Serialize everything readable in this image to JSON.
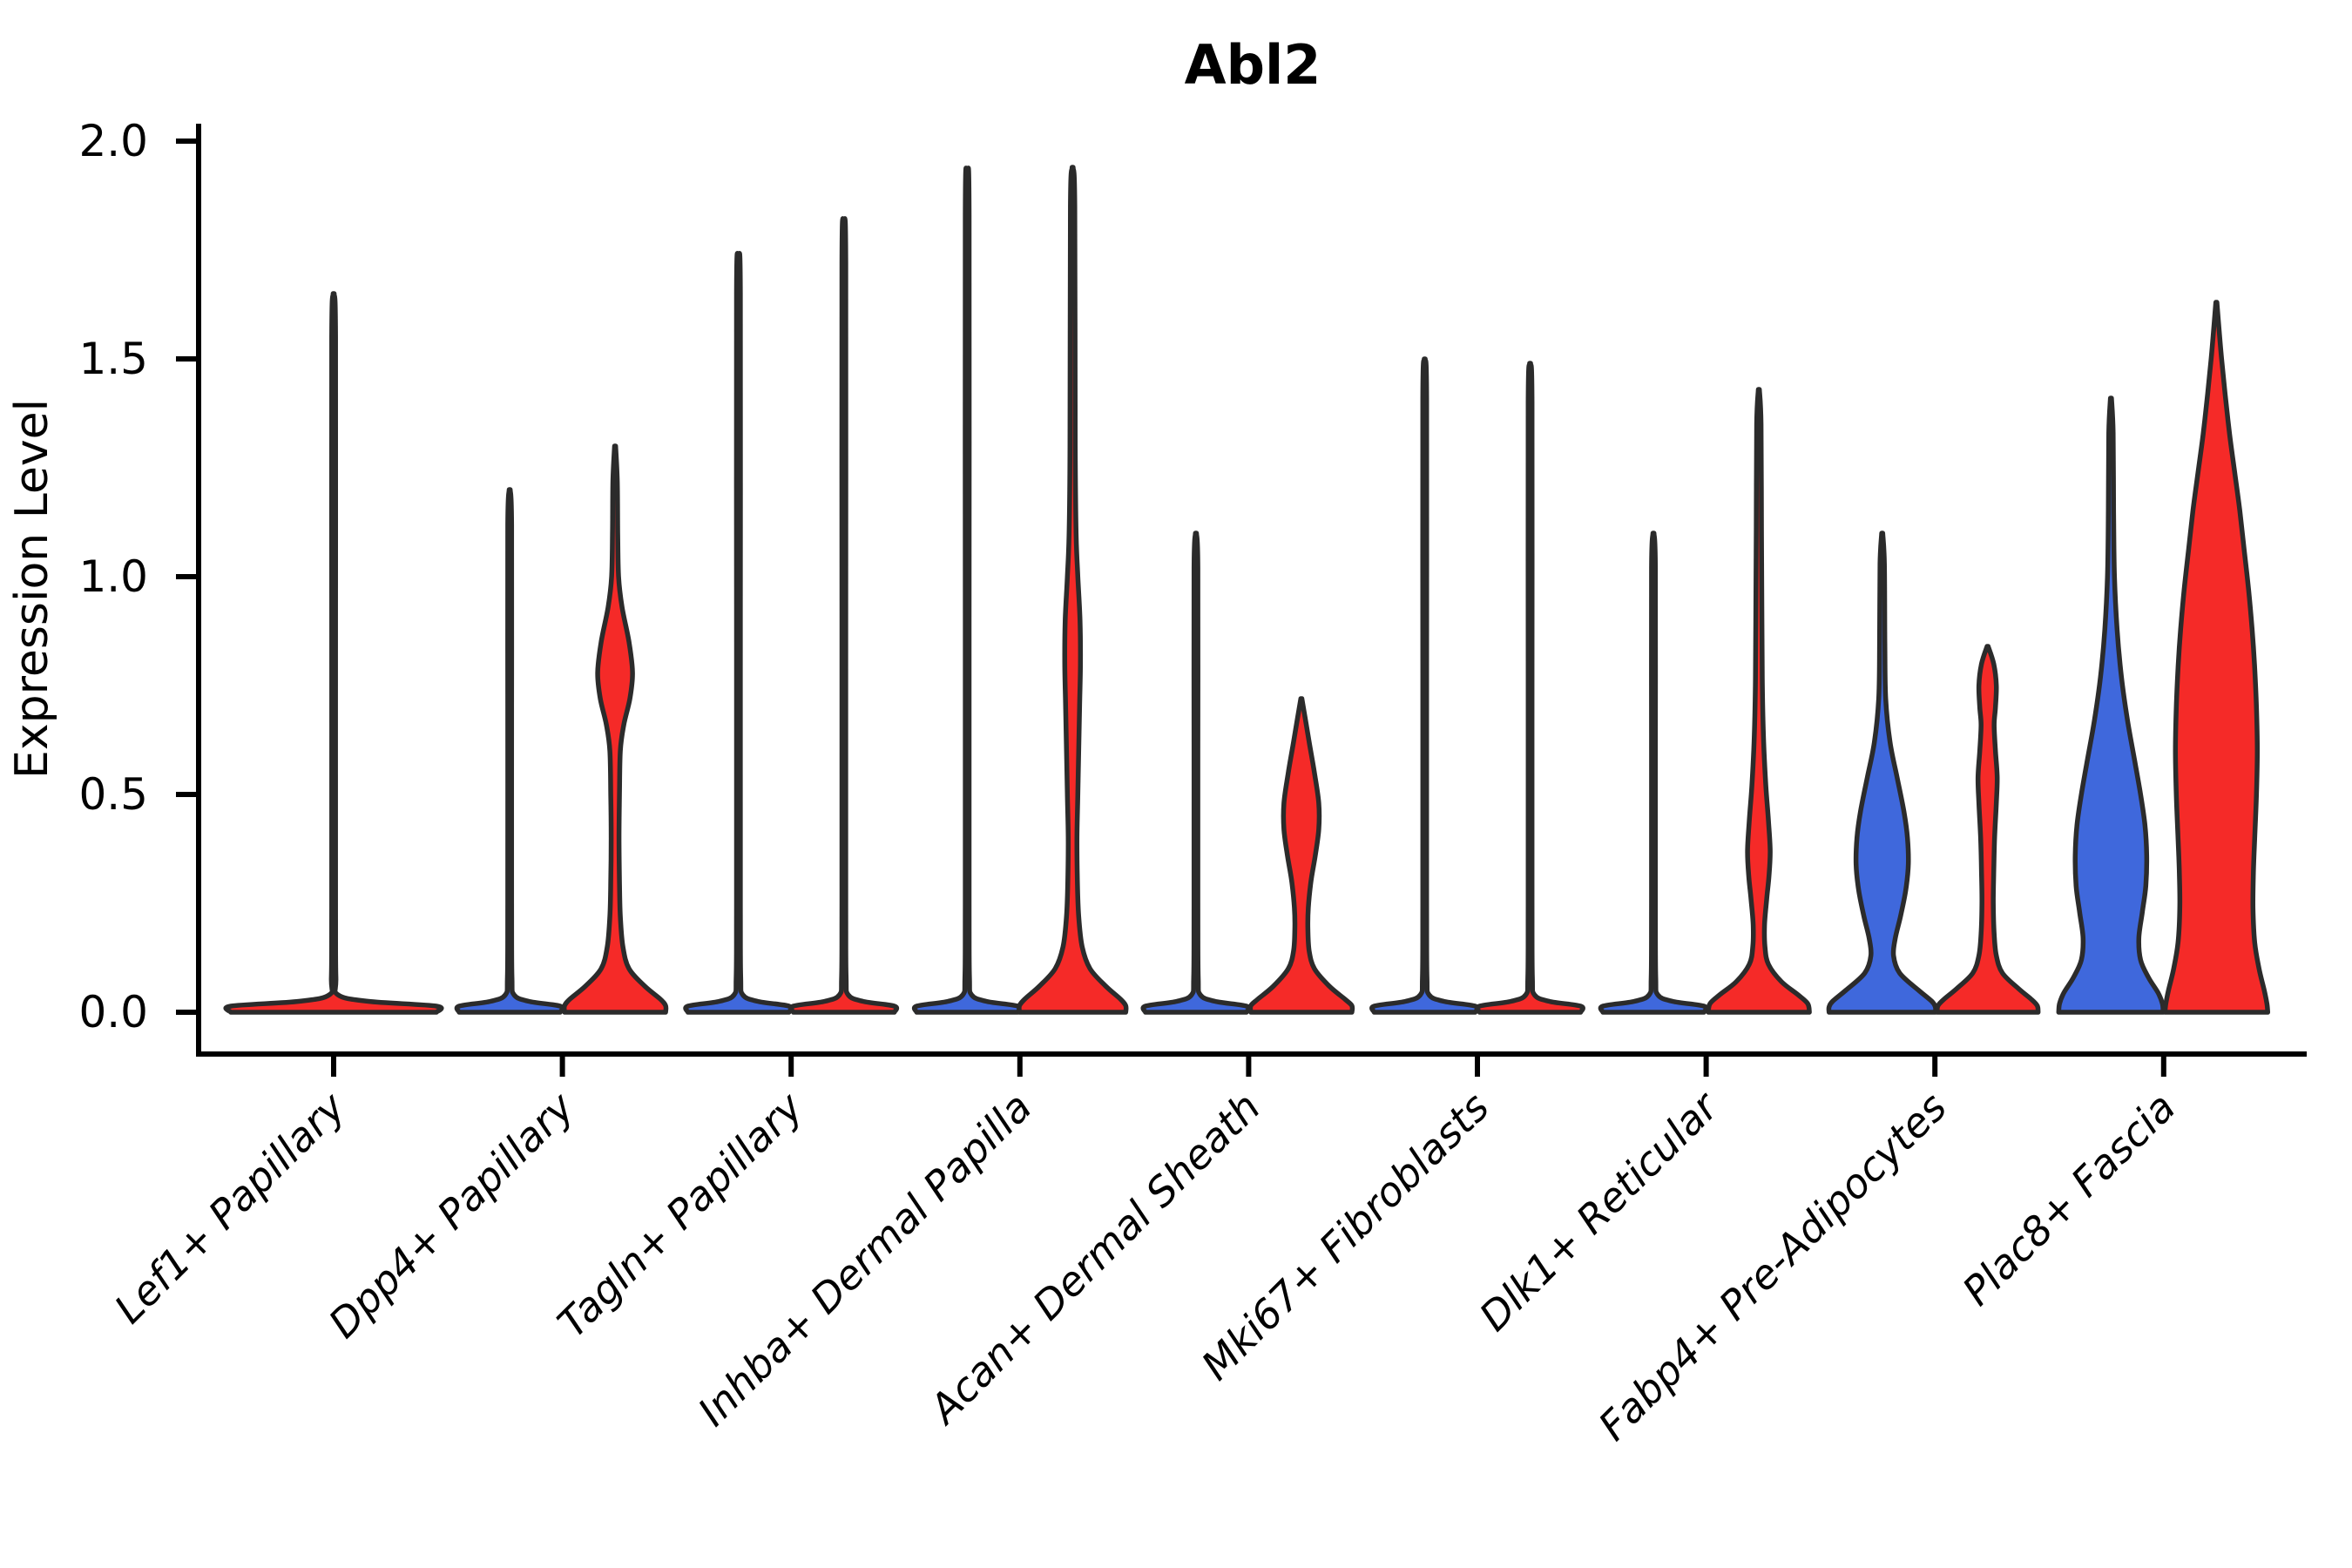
{
  "title": "Abl2",
  "y_axis": {
    "label": "Expression Level",
    "tick_labels": [
      "0.0",
      "0.5",
      "1.0",
      "1.5",
      "2.0"
    ],
    "tick_values": [
      0.0,
      0.5,
      1.0,
      1.5,
      2.0
    ]
  },
  "colors": {
    "red": "#F52A28",
    "blue": "#3F68DC",
    "outline": "#2B2B2B",
    "axis": "#000000",
    "background": "#ffffff"
  },
  "chart_data": {
    "type": "violin",
    "title": "Abl2",
    "ylabel": "Expression Level",
    "ylim": [
      0,
      2.05
    ],
    "grid": false,
    "legend": "none",
    "categories": [
      "Lef1+ Papillary",
      "Dpp4+ Papillary",
      "Tagln+ Papillary",
      "Inhba+ Dermal Papilla",
      "Acan+ Dermal Sheath",
      "Mki67+ Fibroblasts",
      "Dlk1+ Reticular",
      "Fabp4+ Pre-Adipocytes",
      "Plac8+ Fascia"
    ],
    "violins": [
      {
        "category_index": 0,
        "category": "Lef1+ Papillary",
        "position": "center",
        "color_key": "red",
        "max_expression": 1.65,
        "bulk_at_zero": true,
        "width_profile": [
          [
            1.65,
            0.6
          ],
          [
            1.55,
            2.2
          ],
          [
            0.9,
            2.2
          ],
          [
            0.25,
            2.2
          ],
          [
            0.08,
            2.6
          ],
          [
            0.04,
            5
          ],
          [
            0.025,
            40
          ],
          [
            0.014,
            118
          ],
          [
            0,
            118
          ]
        ]
      },
      {
        "category_index": 1,
        "category": "Dpp4+ Papillary",
        "position": "left",
        "color_key": "blue",
        "max_expression": 1.2,
        "bulk_at_zero": true,
        "width_profile": [
          [
            1.2,
            0.6
          ],
          [
            1.12,
            2.2
          ],
          [
            0.7,
            2.2
          ],
          [
            0.25,
            2.2
          ],
          [
            0.08,
            2.6
          ],
          [
            0.04,
            5
          ],
          [
            0.025,
            22
          ],
          [
            0.014,
            58
          ],
          [
            0,
            58
          ]
        ]
      },
      {
        "category_index": 1,
        "category": "Dpp4+ Papillary",
        "position": "right",
        "color_key": "red",
        "max_expression": 1.3,
        "width_profile": [
          [
            1.3,
            0.6
          ],
          [
            1.22,
            2.5
          ],
          [
            1.1,
            3
          ],
          [
            1.0,
            4
          ],
          [
            0.93,
            8
          ],
          [
            0.85,
            16
          ],
          [
            0.78,
            20
          ],
          [
            0.72,
            17
          ],
          [
            0.66,
            10
          ],
          [
            0.6,
            6
          ],
          [
            0.5,
            5
          ],
          [
            0.4,
            4.5
          ],
          [
            0.3,
            5
          ],
          [
            0.22,
            6
          ],
          [
            0.15,
            9
          ],
          [
            0.1,
            16
          ],
          [
            0.06,
            34
          ],
          [
            0.03,
            52
          ],
          [
            0.015,
            58
          ],
          [
            0,
            58
          ]
        ]
      },
      {
        "category_index": 2,
        "category": "Tagln+ Papillary",
        "position": "left",
        "color_key": "blue",
        "max_expression": 1.74,
        "bulk_at_zero": true,
        "width_profile": [
          [
            1.74,
            0.6
          ],
          [
            1.65,
            2.2
          ],
          [
            0.9,
            2.2
          ],
          [
            0.25,
            2.2
          ],
          [
            0.08,
            2.6
          ],
          [
            0.04,
            5
          ],
          [
            0.025,
            22
          ],
          [
            0.014,
            58
          ],
          [
            0,
            58
          ]
        ]
      },
      {
        "category_index": 2,
        "category": "Tagln+ Papillary",
        "position": "right",
        "color_key": "red",
        "max_expression": 1.82,
        "bulk_at_zero": true,
        "width_profile": [
          [
            1.82,
            0.6
          ],
          [
            1.72,
            2.2
          ],
          [
            0.9,
            2.2
          ],
          [
            0.25,
            2.2
          ],
          [
            0.08,
            2.6
          ],
          [
            0.04,
            5
          ],
          [
            0.025,
            22
          ],
          [
            0.014,
            58
          ],
          [
            0,
            58
          ]
        ]
      },
      {
        "category_index": 3,
        "category": "Inhba+ Dermal Papilla",
        "position": "left",
        "color_key": "blue",
        "max_expression": 1.93,
        "bulk_at_zero": true,
        "width_profile": [
          [
            1.93,
            0.6
          ],
          [
            1.83,
            2.2
          ],
          [
            0.9,
            2.2
          ],
          [
            0.25,
            2.2
          ],
          [
            0.08,
            2.6
          ],
          [
            0.04,
            5
          ],
          [
            0.025,
            22
          ],
          [
            0.014,
            58
          ],
          [
            0,
            58
          ]
        ]
      },
      {
        "category_index": 3,
        "category": "Inhba+ Dermal Papilla",
        "position": "right",
        "color_key": "red",
        "max_expression": 1.94,
        "width_profile": [
          [
            1.94,
            0.6
          ],
          [
            1.85,
            2.5
          ],
          [
            1.3,
            3
          ],
          [
            1.1,
            4
          ],
          [
            1.0,
            6
          ],
          [
            0.9,
            8.5
          ],
          [
            0.8,
            9
          ],
          [
            0.7,
            8
          ],
          [
            0.6,
            7
          ],
          [
            0.5,
            6
          ],
          [
            0.4,
            5
          ],
          [
            0.3,
            5.5
          ],
          [
            0.22,
            7
          ],
          [
            0.15,
            11
          ],
          [
            0.1,
            20
          ],
          [
            0.06,
            38
          ],
          [
            0.03,
            55
          ],
          [
            0.015,
            61
          ],
          [
            0,
            61
          ]
        ]
      },
      {
        "category_index": 4,
        "category": "Acan+ Dermal Sheath",
        "position": "left",
        "color_key": "blue",
        "max_expression": 1.1,
        "bulk_at_zero": true,
        "width_profile": [
          [
            1.1,
            0.6
          ],
          [
            1.02,
            2.2
          ],
          [
            0.6,
            2.2
          ],
          [
            0.25,
            2.2
          ],
          [
            0.08,
            2.6
          ],
          [
            0.04,
            5
          ],
          [
            0.025,
            22
          ],
          [
            0.014,
            58
          ],
          [
            0,
            58
          ]
        ]
      },
      {
        "category_index": 4,
        "category": "Acan+ Dermal Sheath",
        "position": "right",
        "color_key": "red",
        "max_expression": 0.72,
        "width_profile": [
          [
            0.72,
            0.6
          ],
          [
            0.68,
            4
          ],
          [
            0.62,
            9
          ],
          [
            0.55,
            15
          ],
          [
            0.48,
            20
          ],
          [
            0.42,
            20
          ],
          [
            0.36,
            16
          ],
          [
            0.3,
            11
          ],
          [
            0.24,
            8
          ],
          [
            0.19,
            7.5
          ],
          [
            0.14,
            9
          ],
          [
            0.1,
            15
          ],
          [
            0.06,
            32
          ],
          [
            0.03,
            50
          ],
          [
            0.015,
            58
          ],
          [
            0,
            58
          ]
        ]
      },
      {
        "category_index": 5,
        "category": "Mki67+ Fibroblasts",
        "position": "left",
        "color_key": "blue",
        "max_expression": 1.5,
        "bulk_at_zero": true,
        "width_profile": [
          [
            1.5,
            0.6
          ],
          [
            1.41,
            2.2
          ],
          [
            0.8,
            2.2
          ],
          [
            0.25,
            2.2
          ],
          [
            0.08,
            2.6
          ],
          [
            0.04,
            5
          ],
          [
            0.025,
            22
          ],
          [
            0.014,
            58
          ],
          [
            0,
            58
          ]
        ]
      },
      {
        "category_index": 5,
        "category": "Mki67+ Fibroblasts",
        "position": "right",
        "color_key": "red",
        "max_expression": 1.49,
        "bulk_at_zero": true,
        "width_profile": [
          [
            1.49,
            0.6
          ],
          [
            1.4,
            2.2
          ],
          [
            0.8,
            2.2
          ],
          [
            0.25,
            2.2
          ],
          [
            0.08,
            2.6
          ],
          [
            0.04,
            5
          ],
          [
            0.025,
            22
          ],
          [
            0.014,
            58
          ],
          [
            0,
            58
          ]
        ]
      },
      {
        "category_index": 6,
        "category": "Dlk1+ Reticular",
        "position": "left",
        "color_key": "blue",
        "max_expression": 1.1,
        "bulk_at_zero": true,
        "width_profile": [
          [
            1.1,
            0.6
          ],
          [
            1.02,
            2.2
          ],
          [
            0.6,
            2.2
          ],
          [
            0.25,
            2.2
          ],
          [
            0.08,
            2.6
          ],
          [
            0.04,
            5
          ],
          [
            0.025,
            22
          ],
          [
            0.014,
            58
          ],
          [
            0,
            58
          ]
        ]
      },
      {
        "category_index": 6,
        "category": "Dlk1+ Reticular",
        "position": "right",
        "color_key": "red",
        "max_expression": 1.43,
        "width_profile": [
          [
            1.43,
            0.6
          ],
          [
            1.35,
            2.5
          ],
          [
            1.1,
            3
          ],
          [
            0.9,
            3.5
          ],
          [
            0.75,
            4
          ],
          [
            0.62,
            5.5
          ],
          [
            0.52,
            8
          ],
          [
            0.44,
            11
          ],
          [
            0.37,
            13
          ],
          [
            0.31,
            11.5
          ],
          [
            0.26,
            9
          ],
          [
            0.2,
            6.5
          ],
          [
            0.15,
            7
          ],
          [
            0.11,
            11
          ],
          [
            0.07,
            26
          ],
          [
            0.04,
            45
          ],
          [
            0.02,
            56
          ],
          [
            0,
            58
          ]
        ]
      },
      {
        "category_index": 7,
        "category": "Fabp4+ Pre-Adipocytes",
        "position": "left",
        "color_key": "blue",
        "max_expression": 1.1,
        "width_profile": [
          [
            1.1,
            0.6
          ],
          [
            1.03,
            2.5
          ],
          [
            0.85,
            3
          ],
          [
            0.72,
            4
          ],
          [
            0.62,
            9
          ],
          [
            0.54,
            17
          ],
          [
            0.46,
            25
          ],
          [
            0.4,
            29
          ],
          [
            0.34,
            30
          ],
          [
            0.28,
            27
          ],
          [
            0.22,
            21
          ],
          [
            0.17,
            15
          ],
          [
            0.13,
            13
          ],
          [
            0.09,
            20
          ],
          [
            0.05,
            42
          ],
          [
            0.025,
            57
          ],
          [
            0.012,
            61
          ],
          [
            0,
            61
          ]
        ]
      },
      {
        "category_index": 7,
        "category": "Fabp4+ Pre-Adipocytes",
        "position": "right",
        "color_key": "red",
        "max_expression": 0.84,
        "width_profile": [
          [
            0.84,
            0.6
          ],
          [
            0.8,
            7
          ],
          [
            0.75,
            10
          ],
          [
            0.7,
            9
          ],
          [
            0.66,
            7.5
          ],
          [
            0.6,
            9
          ],
          [
            0.54,
            11
          ],
          [
            0.48,
            10
          ],
          [
            0.4,
            8
          ],
          [
            0.32,
            7
          ],
          [
            0.25,
            6.5
          ],
          [
            0.18,
            7.5
          ],
          [
            0.13,
            10
          ],
          [
            0.09,
            17
          ],
          [
            0.055,
            35
          ],
          [
            0.03,
            50
          ],
          [
            0.015,
            57
          ],
          [
            0,
            58
          ]
        ]
      },
      {
        "category_index": 8,
        "category": "Plac8+ Fascia",
        "position": "left",
        "color_key": "blue",
        "max_expression": 1.41,
        "width_profile": [
          [
            1.41,
            0.6
          ],
          [
            1.33,
            2.5
          ],
          [
            1.15,
            3
          ],
          [
            1.0,
            4
          ],
          [
            0.88,
            7
          ],
          [
            0.77,
            12
          ],
          [
            0.67,
            19
          ],
          [
            0.58,
            27
          ],
          [
            0.5,
            34
          ],
          [
            0.43,
            39
          ],
          [
            0.36,
            41
          ],
          [
            0.29,
            40
          ],
          [
            0.23,
            36
          ],
          [
            0.17,
            32
          ],
          [
            0.12,
            34
          ],
          [
            0.08,
            43
          ],
          [
            0.045,
            54
          ],
          [
            0.02,
            59
          ],
          [
            0,
            60
          ]
        ]
      },
      {
        "category_index": 8,
        "category": "Plac8+ Fascia",
        "position": "right",
        "color_key": "red",
        "max_expression": 1.63,
        "width_profile": [
          [
            1.63,
            0.6
          ],
          [
            1.57,
            3
          ],
          [
            1.5,
            6
          ],
          [
            1.42,
            10
          ],
          [
            1.33,
            15
          ],
          [
            1.24,
            21
          ],
          [
            1.15,
            27
          ],
          [
            1.06,
            32
          ],
          [
            0.97,
            37
          ],
          [
            0.88,
            41
          ],
          [
            0.79,
            44
          ],
          [
            0.7,
            46
          ],
          [
            0.6,
            47
          ],
          [
            0.5,
            46
          ],
          [
            0.4,
            44
          ],
          [
            0.32,
            42.5
          ],
          [
            0.24,
            42
          ],
          [
            0.16,
            44
          ],
          [
            0.1,
            49
          ],
          [
            0.05,
            55
          ],
          [
            0.02,
            58
          ],
          [
            0,
            59
          ]
        ]
      }
    ]
  }
}
